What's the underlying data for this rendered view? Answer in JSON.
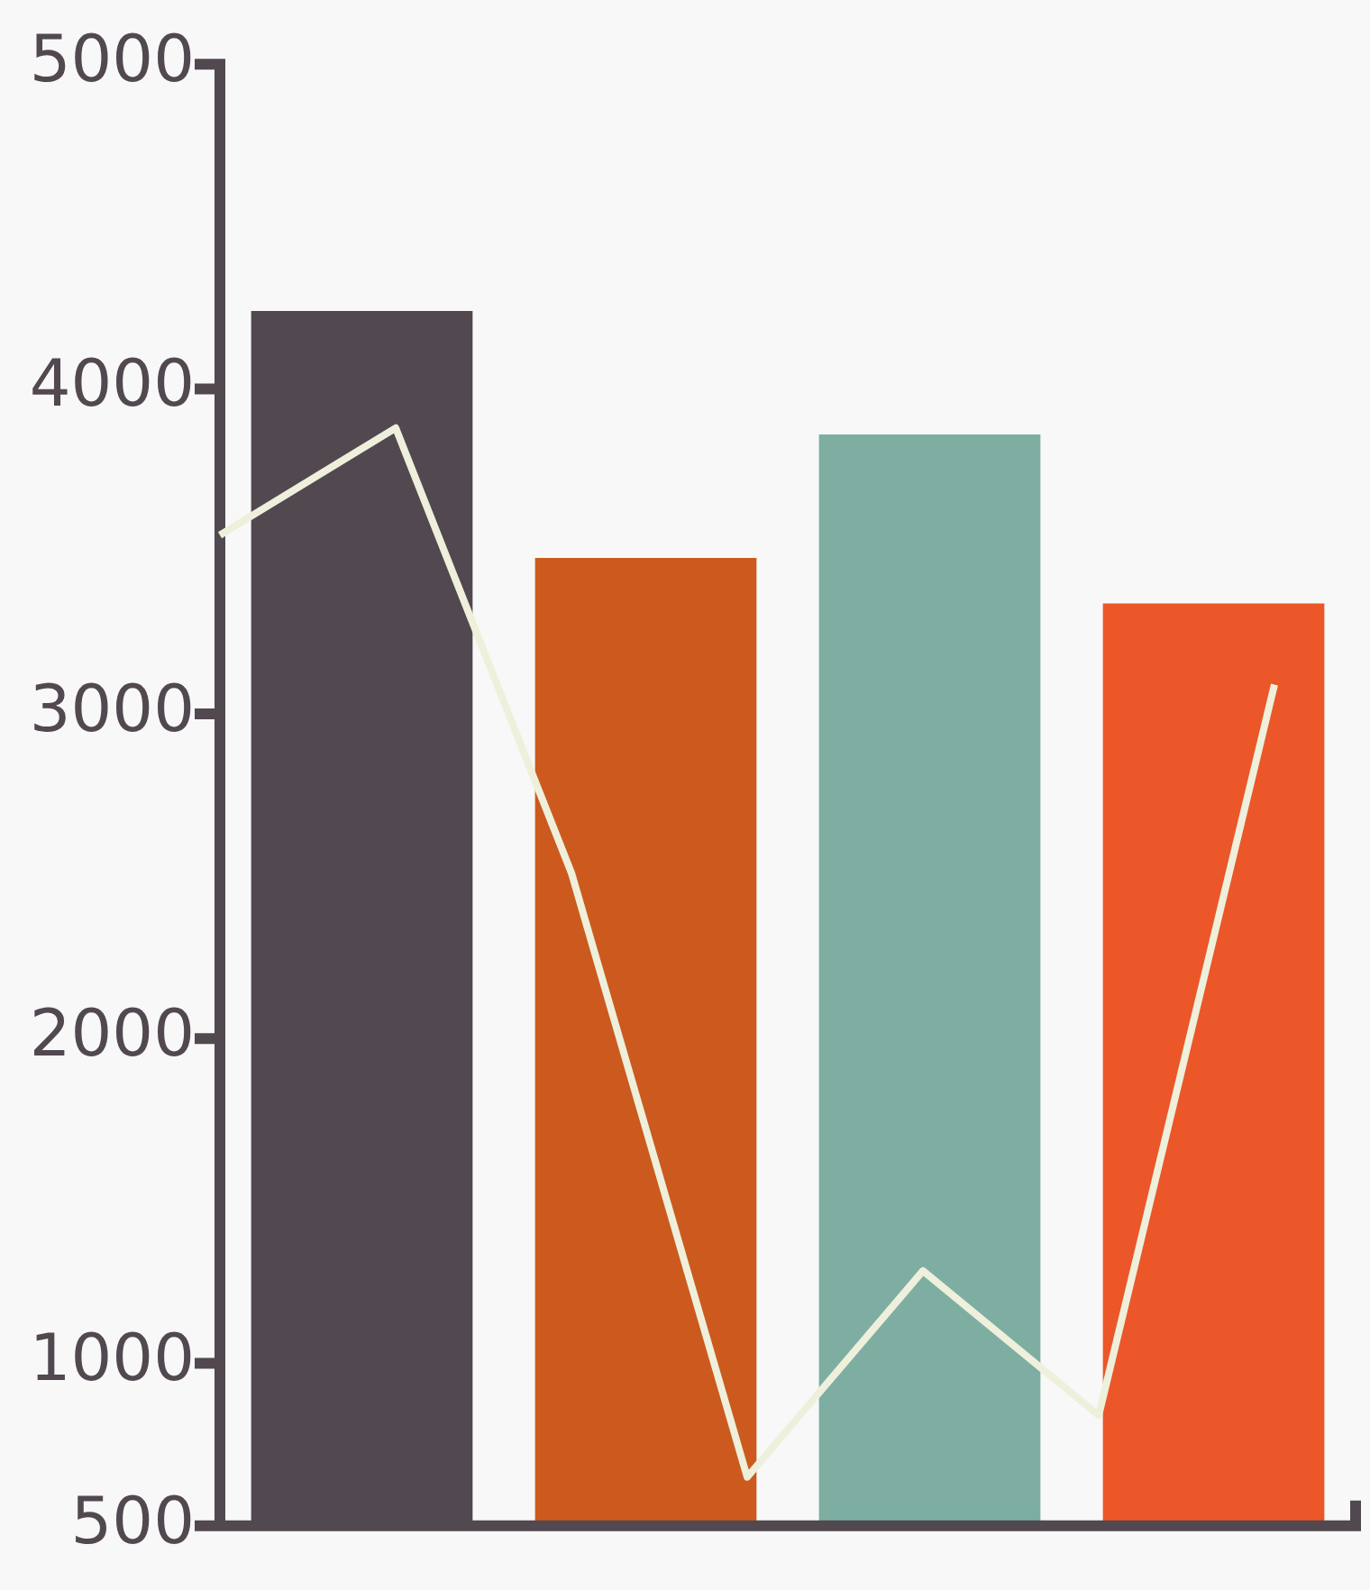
{
  "chart_data": [
    {
      "type": "bar",
      "categories": [
        null,
        null,
        null,
        null
      ],
      "series": [
        {
          "colors": [
            "#524850",
            "#cc5a1e",
            "#7eaea2",
            "#eb5729"
          ],
          "values": [
            4240,
            3480,
            3860,
            3340
          ]
        }
      ],
      "ylim": [
        500,
        5000
      ],
      "yticks": [
        500,
        1000,
        2000,
        3000,
        4000,
        5000
      ],
      "tick_labels": "y",
      "grid": false,
      "legend": false
    },
    {
      "type": "line",
      "categories": [
        null,
        null,
        null,
        null,
        null,
        null,
        null
      ],
      "series": [
        {
          "color": "#eef0dc",
          "values": [
            3550,
            3880,
            2510,
            650,
            1285,
            840,
            3090
          ]
        }
      ],
      "ylim": [
        500,
        5000
      ],
      "tick_labels": false,
      "grid": false,
      "legend": false,
      "marker": "none",
      "line_style": "solid"
    }
  ]
}
